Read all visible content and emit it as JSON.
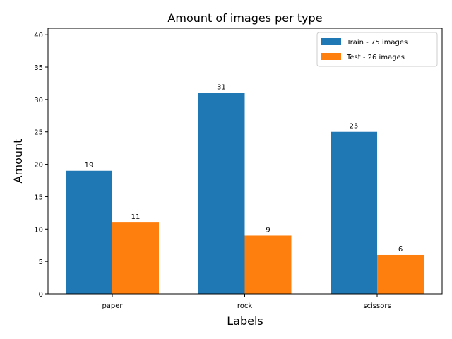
{
  "chart_data": {
    "type": "bar",
    "title": "Amount of images per type",
    "xlabel": "Labels",
    "ylabel": "Amount",
    "categories": [
      "paper",
      "rock",
      "scissors"
    ],
    "series": [
      {
        "name": "Train - 75 images",
        "color": "#1f77b4",
        "values": [
          19,
          31,
          25
        ]
      },
      {
        "name": "Test - 26 images",
        "color": "#ff7f0e",
        "values": [
          11,
          9,
          6
        ]
      }
    ],
    "ylim": [
      0,
      41
    ],
    "yticks": [
      0,
      5,
      10,
      15,
      20,
      25,
      30,
      35,
      40
    ],
    "grid": false,
    "legend_position": "top-right"
  }
}
